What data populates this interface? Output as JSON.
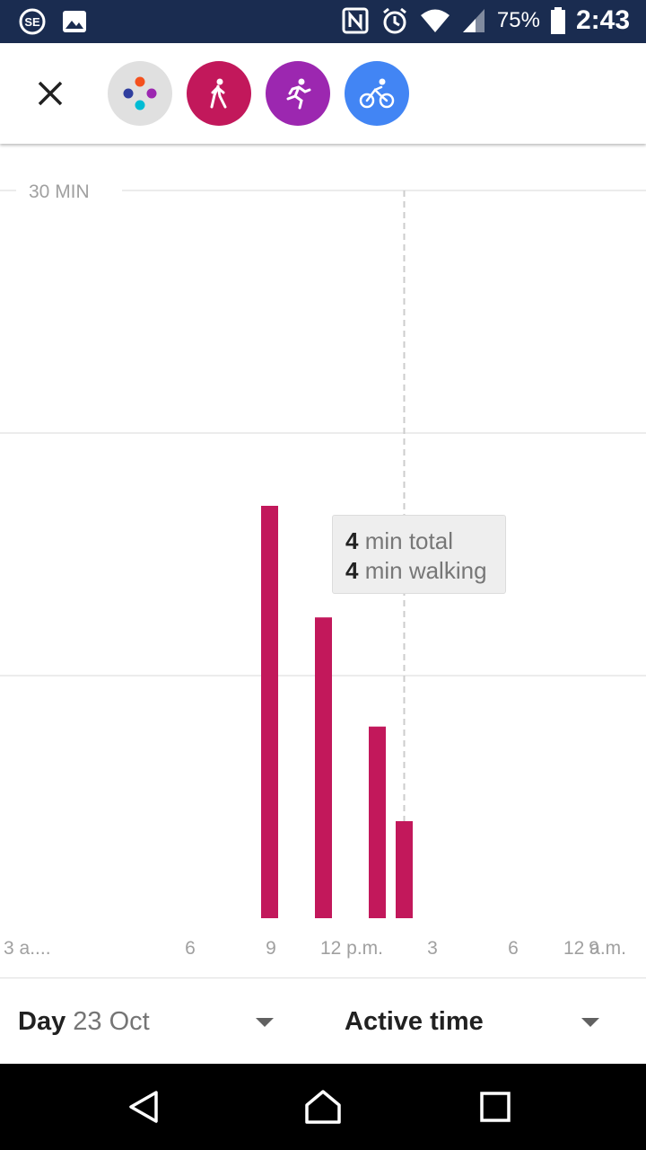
{
  "status_bar": {
    "left_icons": [
      "se-app-icon",
      "image-icon"
    ],
    "right_icons": [
      "nfc-icon",
      "alarm-icon",
      "wifi-icon",
      "signal-icon"
    ],
    "battery_percent": "75%",
    "time": "2:43"
  },
  "toolbar": {
    "close_icon": "close-icon",
    "filters": [
      {
        "name": "all-activities",
        "icon": "dots-icon",
        "color": "#e0e0e0"
      },
      {
        "name": "walking",
        "icon": "walking-icon",
        "color": "#c2185b"
      },
      {
        "name": "running",
        "icon": "running-icon",
        "color": "#9c27b0"
      },
      {
        "name": "cycling",
        "icon": "cycling-icon",
        "color": "#4285f4"
      }
    ]
  },
  "chart_data": {
    "type": "bar",
    "ylabel": "30 MIN",
    "ylim": [
      0,
      30
    ],
    "x_ticks": [
      "3 a....",
      "6",
      "9",
      "12 p.m.",
      "3",
      "6",
      "9",
      "12 a.m."
    ],
    "x_tick_hours": [
      3,
      6,
      9,
      12,
      15,
      18,
      21,
      24
    ],
    "bars": [
      {
        "hour": 8.95,
        "value": 17
      },
      {
        "hour": 10.95,
        "value": 12.4
      },
      {
        "hour": 12.95,
        "value": 7.9
      },
      {
        "hour": 13.95,
        "value": 4
      }
    ],
    "bar_color": "#c2185b",
    "grid": true,
    "selected_hour": 13.95
  },
  "tooltip": {
    "line1_value": "4",
    "line1_text": "min total",
    "line2_value": "4",
    "line2_text": "min walking"
  },
  "bottom_bar": {
    "period_label": "Day",
    "period_value": "23 Oct",
    "metric_label": "Active time"
  },
  "nav_bar": {
    "icons": [
      "back-icon",
      "home-icon",
      "recents-icon"
    ]
  }
}
